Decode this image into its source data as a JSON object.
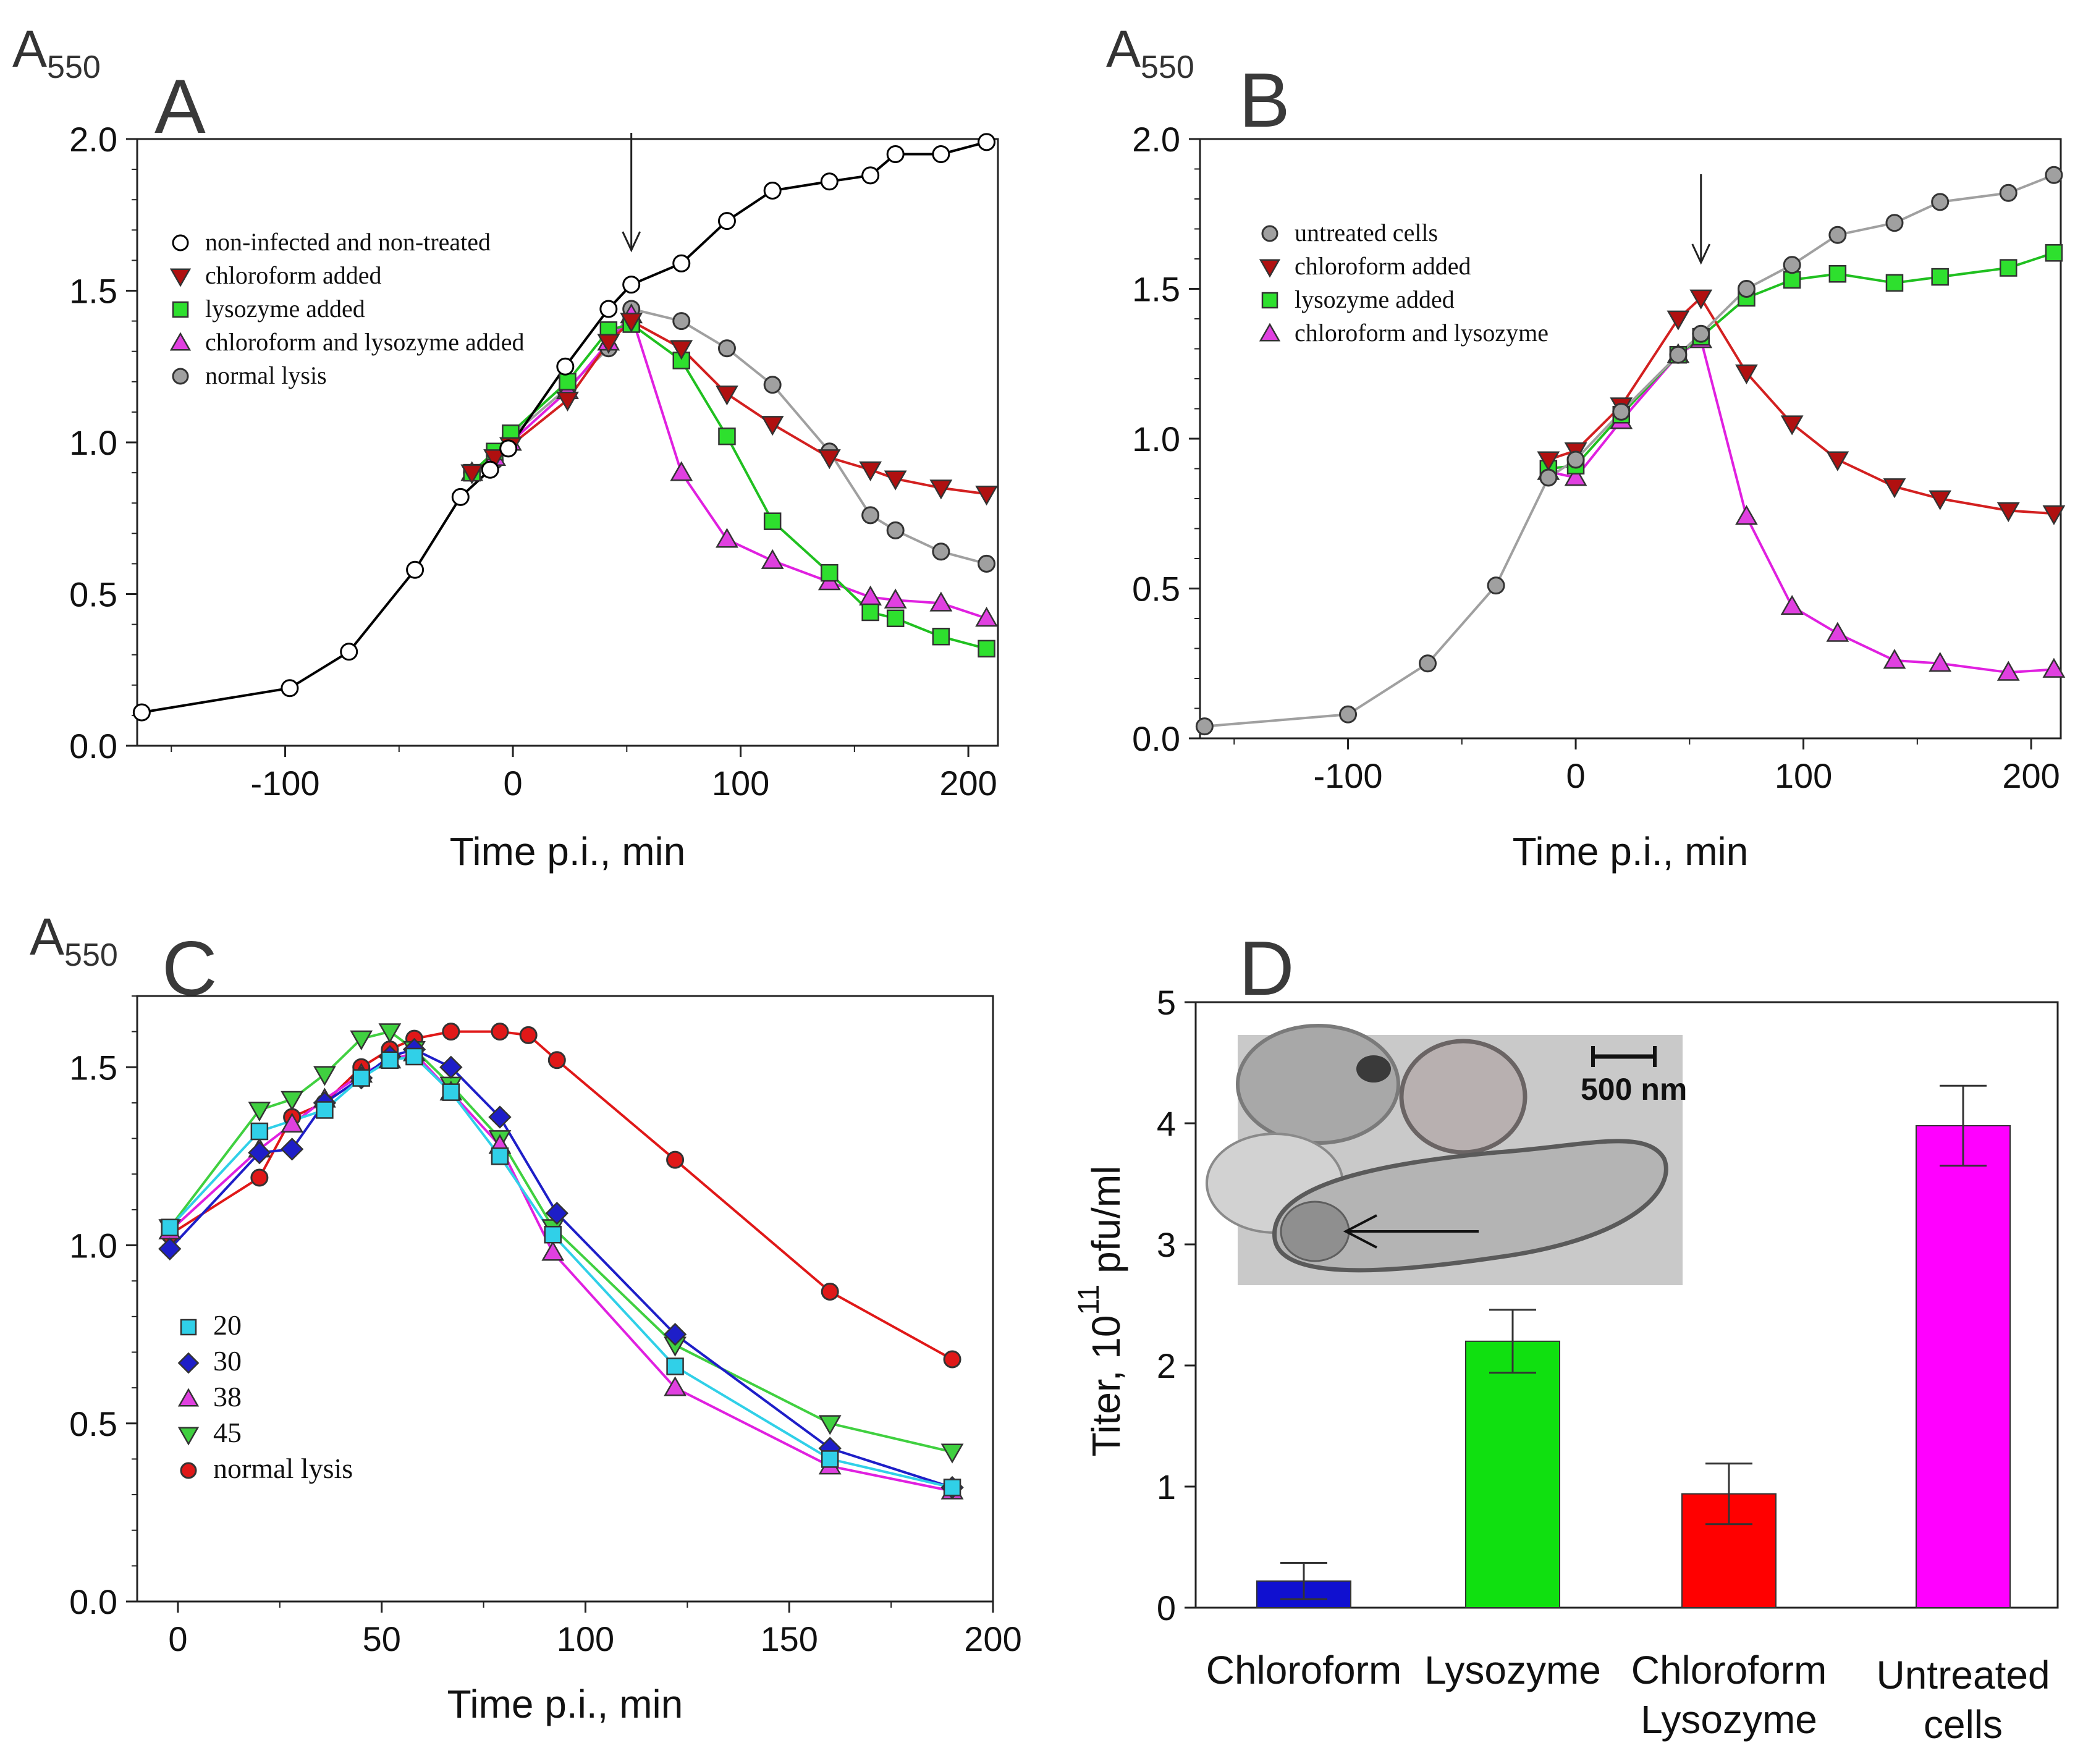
{
  "chart_data": [
    {
      "panel": "A",
      "type": "line",
      "title": "A",
      "ylabel": "A",
      "ylabel_subscript": "550",
      "xlabel": "Time p.i., min",
      "xlim": [
        -165,
        213
      ],
      "ylim": [
        0,
        2
      ],
      "xticks": [
        -100,
        0,
        100,
        200
      ],
      "xtick_labels": [
        "-100",
        "0",
        "100",
        "200"
      ],
      "yticks": [
        0,
        0.5,
        1,
        1.5,
        2
      ],
      "ytick_labels": [
        "0.0",
        "0.5",
        "1.0",
        "1.5",
        "2.0"
      ],
      "arrow_x": 52,
      "series": [
        {
          "name": "non-infected and non-treated",
          "marker": "circle",
          "color": "#000000",
          "fill": "#ffffff",
          "x": [
            -163,
            -98,
            -72,
            -43,
            -23,
            -10,
            -2,
            23,
            42,
            52,
            74,
            94,
            114,
            139,
            157,
            168,
            188,
            208
          ],
          "y": [
            0.11,
            0.19,
            0.31,
            0.58,
            0.82,
            0.91,
            0.98,
            1.25,
            1.44,
            1.52,
            1.59,
            1.73,
            1.83,
            1.86,
            1.88,
            1.95,
            1.95,
            1.99
          ]
        },
        {
          "name": "chloroform added",
          "marker": "triangle-down",
          "color": "#d32020",
          "fill": "#b01010",
          "x": [
            -18,
            -8,
            -1,
            24,
            42,
            52,
            74,
            94,
            114,
            139,
            157,
            168,
            188,
            208
          ],
          "y": [
            0.9,
            0.95,
            0.99,
            1.14,
            1.33,
            1.4,
            1.31,
            1.16,
            1.06,
            0.95,
            0.91,
            0.88,
            0.85,
            0.83
          ]
        },
        {
          "name": "lysozyme added",
          "marker": "square",
          "color": "#20c020",
          "fill": "#2ee02e",
          "x": [
            -18,
            -8,
            -1,
            24,
            42,
            52,
            74,
            94,
            114,
            139,
            157,
            168,
            188,
            208
          ],
          "y": [
            0.9,
            0.97,
            1.03,
            1.2,
            1.37,
            1.39,
            1.27,
            1.02,
            0.74,
            0.57,
            0.44,
            0.42,
            0.36,
            0.32
          ]
        },
        {
          "name": "chloroform and lysozyme added",
          "marker": "triangle-up",
          "color": "#e020e0",
          "fill": "#e040e0",
          "x": [
            -18,
            -8,
            -1,
            24,
            42,
            52,
            74,
            94,
            114,
            139,
            157,
            168,
            188,
            208
          ],
          "y": [
            0.9,
            0.95,
            1.0,
            1.17,
            1.33,
            1.42,
            0.9,
            0.68,
            0.61,
            0.54,
            0.49,
            0.48,
            0.47,
            0.42
          ]
        },
        {
          "name": "normal lysis",
          "marker": "circle",
          "color": "#a0a0a0",
          "fill": "#a0a0a0",
          "x": [
            -18,
            -8,
            -1,
            24,
            42,
            52,
            74,
            94,
            114,
            139,
            157,
            168,
            188,
            208
          ],
          "y": [
            0.9,
            0.94,
            1.02,
            1.18,
            1.31,
            1.44,
            1.4,
            1.31,
            1.19,
            0.97,
            0.76,
            0.71,
            0.64,
            0.6
          ]
        }
      ]
    },
    {
      "panel": "B",
      "type": "line",
      "title": "B",
      "ylabel": "A",
      "ylabel_subscript": "550",
      "xlabel": "Time p.i., min",
      "xlim": [
        -165,
        213
      ],
      "ylim": [
        0,
        2
      ],
      "xticks": [
        -100,
        0,
        100,
        200
      ],
      "xtick_labels": [
        "-100",
        "0",
        "100",
        "200"
      ],
      "yticks": [
        0,
        0.5,
        1,
        1.5,
        2
      ],
      "ytick_labels": [
        "0.0",
        "0.5",
        "1.0",
        "1.5",
        "2.0"
      ],
      "arrow_x": 55,
      "series": [
        {
          "name": "untreated cells",
          "marker": "circle",
          "color": "#a0a0a0",
          "fill": "#a0a0a0",
          "x": [
            -163,
            -100,
            -65,
            -35,
            -12,
            0,
            20,
            45,
            55,
            75,
            95,
            115,
            140,
            160,
            190,
            210
          ],
          "y": [
            0.04,
            0.08,
            0.25,
            0.51,
            0.87,
            0.93,
            1.09,
            1.28,
            1.35,
            1.5,
            1.58,
            1.68,
            1.72,
            1.79,
            1.82,
            1.88
          ]
        },
        {
          "name": "chloroform added",
          "marker": "triangle-down",
          "color": "#d32020",
          "fill": "#b01010",
          "x": [
            -12,
            0,
            20,
            45,
            55,
            75,
            95,
            115,
            140,
            160,
            190,
            210
          ],
          "y": [
            0.93,
            0.96,
            1.11,
            1.4,
            1.47,
            1.22,
            1.05,
            0.93,
            0.84,
            0.8,
            0.76,
            0.75
          ]
        },
        {
          "name": "lysozyme added",
          "marker": "square",
          "color": "#20c020",
          "fill": "#2ee02e",
          "x": [
            -12,
            0,
            20,
            45,
            55,
            75,
            95,
            115,
            140,
            160,
            190,
            210
          ],
          "y": [
            0.9,
            0.91,
            1.08,
            1.28,
            1.34,
            1.47,
            1.53,
            1.55,
            1.52,
            1.54,
            1.57,
            1.62
          ]
        },
        {
          "name": "chloroform and lysozyme",
          "marker": "triangle-up",
          "color": "#e020e0",
          "fill": "#e040e0",
          "x": [
            -12,
            0,
            20,
            45,
            55,
            75,
            95,
            115,
            140,
            160,
            190,
            210
          ],
          "y": [
            0.89,
            0.87,
            1.06,
            1.28,
            1.33,
            0.74,
            0.44,
            0.35,
            0.26,
            0.25,
            0.22,
            0.23
          ]
        }
      ]
    },
    {
      "panel": "C",
      "type": "line",
      "title": "C",
      "ylabel": "A",
      "ylabel_subscript": "550",
      "xlabel": "Time p.i., min",
      "xlim": [
        -10,
        200
      ],
      "ylim": [
        0,
        1.7
      ],
      "xticks": [
        0,
        50,
        100,
        150,
        200
      ],
      "xtick_labels": [
        "0",
        "50",
        "100",
        "150",
        "200"
      ],
      "yticks": [
        0,
        0.5,
        1,
        1.5
      ],
      "ytick_labels": [
        "0.0",
        "0.5",
        "1.0",
        "1.5"
      ],
      "series": [
        {
          "name": "20",
          "marker": "square",
          "color": "#30d0e8",
          "fill": "#30d0e8",
          "x": [
            -2,
            20,
            36,
            45,
            52,
            58,
            67,
            79,
            92,
            122,
            160,
            190
          ],
          "y": [
            1.05,
            1.32,
            1.38,
            1.47,
            1.52,
            1.53,
            1.43,
            1.25,
            1.03,
            0.66,
            0.4,
            0.32
          ]
        },
        {
          "name": "30",
          "marker": "diamond",
          "color": "#1e1ec8",
          "fill": "#1e1ec8",
          "x": [
            -2,
            20,
            28,
            36,
            45,
            52,
            58,
            67,
            79,
            93,
            122,
            160,
            190
          ],
          "y": [
            0.99,
            1.26,
            1.27,
            1.4,
            1.47,
            1.53,
            1.55,
            1.5,
            1.36,
            1.09,
            0.75,
            0.43,
            0.32
          ]
        },
        {
          "name": "38",
          "marker": "triangle-up",
          "color": "#e020e0",
          "fill": "#e040e0",
          "x": [
            -2,
            20,
            28,
            36,
            45,
            52,
            58,
            67,
            79,
            92,
            122,
            160,
            190
          ],
          "y": [
            1.04,
            1.27,
            1.34,
            1.41,
            1.48,
            1.52,
            1.54,
            1.43,
            1.28,
            0.98,
            0.6,
            0.38,
            0.31
          ]
        },
        {
          "name": "45",
          "marker": "triangle-down",
          "color": "#40d040",
          "fill": "#40d040",
          "x": [
            -2,
            20,
            28,
            36,
            45,
            52,
            58,
            67,
            79,
            92,
            122,
            160,
            190
          ],
          "y": [
            1.05,
            1.38,
            1.41,
            1.48,
            1.58,
            1.6,
            1.55,
            1.45,
            1.3,
            1.05,
            0.72,
            0.5,
            0.42
          ]
        },
        {
          "name": "normal lysis",
          "marker": "circle",
          "color": "#e01818",
          "fill": "#e01818",
          "x": [
            -2,
            20,
            28,
            36,
            45,
            52,
            58,
            67,
            79,
            86,
            93,
            122,
            160,
            190
          ],
          "y": [
            1.03,
            1.19,
            1.36,
            1.4,
            1.5,
            1.55,
            1.58,
            1.6,
            1.6,
            1.59,
            1.52,
            1.24,
            0.87,
            0.68
          ]
        }
      ]
    },
    {
      "panel": "D",
      "type": "bar",
      "title": "D",
      "ylabel_prefix": "Titer, 10",
      "ylabel_exponent": "11",
      "ylabel_suffix": "pfu/ml",
      "ylim": [
        0,
        5
      ],
      "yticks": [
        0,
        1,
        2,
        3,
        4,
        5
      ],
      "ytick_labels": [
        "0",
        "1",
        "2",
        "3",
        "4",
        "5"
      ],
      "categories": [
        [
          "Chloroform"
        ],
        [
          "Lysozyme"
        ],
        [
          "Chloroform",
          "Lysozyme"
        ],
        [
          "Untreated",
          "cells"
        ]
      ],
      "values": [
        0.22,
        2.2,
        0.94,
        3.98
      ],
      "errors": [
        0.15,
        0.26,
        0.25,
        0.33
      ],
      "colors": [
        "#1010d0",
        "#10e010",
        "#ff0000",
        "#ff00ff"
      ],
      "inset_scale_label": "500 nm"
    }
  ],
  "figure": {
    "panels": [
      "A",
      "B",
      "C",
      "D"
    ]
  }
}
